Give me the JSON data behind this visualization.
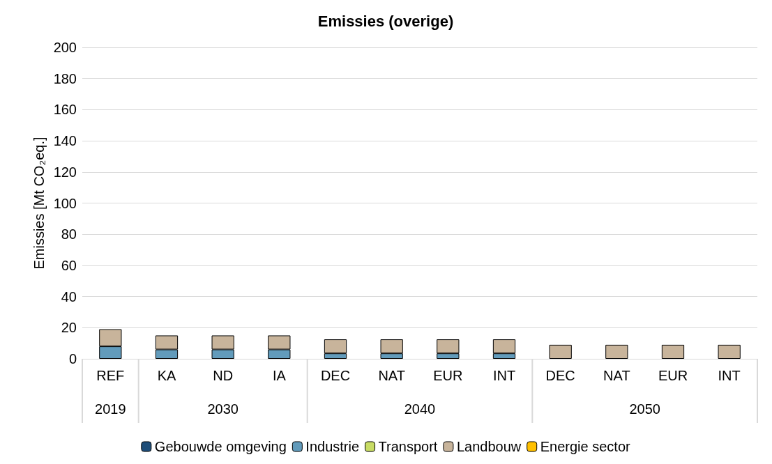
{
  "chart_data": {
    "type": "bar",
    "title": "Emissies (overige)",
    "ylabel": "Emissies [Mt CO₂eq.]",
    "stacked": true,
    "grid": "y",
    "legend": "bottom",
    "categories": [
      "REF",
      "KA",
      "ND",
      "IA",
      "DEC",
      "NAT",
      "EUR",
      "INT",
      "DEC",
      "NAT",
      "EUR",
      "INT"
    ],
    "series": [
      {
        "name": "Gebouwde omgeving",
        "color": "#1f4e79",
        "values": [
          null,
          null,
          null,
          null,
          null,
          null,
          null,
          null,
          null,
          null,
          null,
          null
        ]
      },
      {
        "name": "Industrie",
        "color": "#629bbb",
        "values": [
          8,
          6,
          6,
          6,
          3.5,
          3.5,
          3.5,
          3.5,
          null,
          null,
          null,
          null
        ]
      },
      {
        "name": "Transport",
        "color": "#c8dc64",
        "values": [
          null,
          null,
          null,
          null,
          null,
          null,
          null,
          null,
          null,
          null,
          null,
          null
        ]
      },
      {
        "name": "Landbouw",
        "color": "#c8b49b",
        "values": [
          11,
          9,
          9,
          9,
          9,
          9,
          9,
          9,
          9,
          9,
          9,
          9
        ]
      },
      {
        "name": "Energie sector",
        "color": "#ffc000",
        "values": [
          null,
          null,
          null,
          null,
          null,
          null,
          null,
          null,
          null,
          null,
          null,
          null
        ]
      }
    ],
    "ylim": [
      0,
      200
    ],
    "yticks": [
      0,
      20,
      40,
      60,
      80,
      100,
      120,
      140,
      160,
      180,
      200
    ],
    "annotations": [
      "2019",
      "2030",
      "2040",
      "2050"
    ]
  }
}
